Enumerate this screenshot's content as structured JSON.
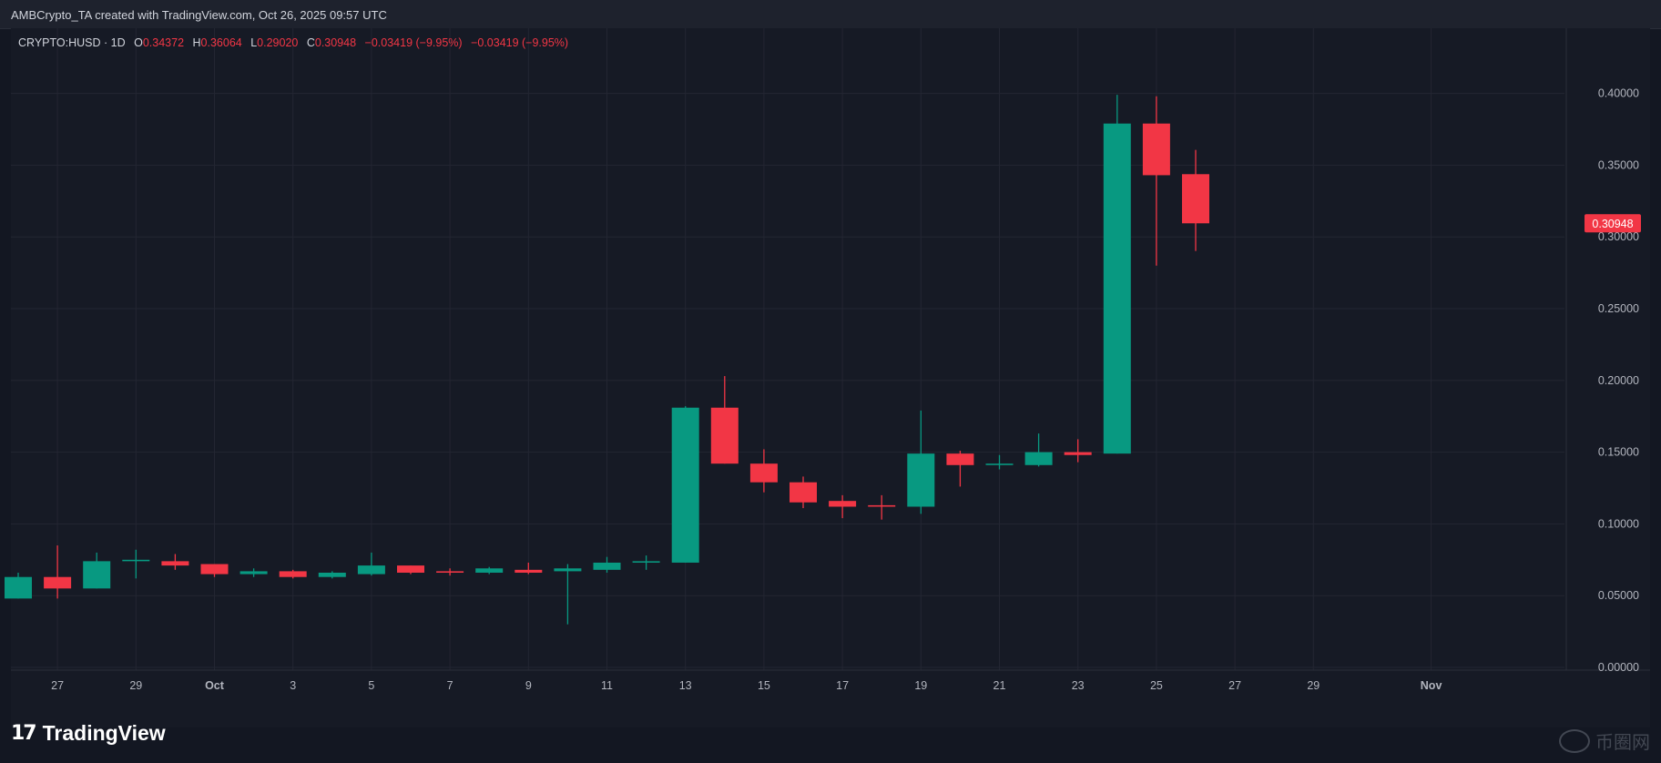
{
  "header": {
    "title": "AMBCrypto_TA created with TradingView.com, Oct 26, 2025 09:57 UTC"
  },
  "legend": {
    "symbol": "CRYPTO:HUSD · 1D",
    "open_label": "O",
    "open": "0.34372",
    "high_label": "H",
    "high": "0.36064",
    "low_label": "L",
    "low": "0.29020",
    "close_label": "C",
    "close": "0.30948",
    "change1": "−0.03419 (−9.95%)",
    "change2": "−0.03419 (−9.95%)"
  },
  "footer": {
    "logo_mark": "17",
    "logo_text": "TradingView",
    "watermark": "币圈网"
  },
  "colors": {
    "up": "#089981",
    "down": "#f23645",
    "background": "#131722",
    "grid": "#232632",
    "axis_text": "#b2b5be"
  },
  "chart_data": {
    "type": "candlestick",
    "interval": "1D",
    "y_range": [
      0.0,
      0.43
    ],
    "y_ticks": [
      "0.40000",
      "0.35000",
      "0.30000",
      "0.25000",
      "0.20000",
      "0.15000",
      "0.10000",
      "0.05000",
      "0.00000"
    ],
    "x_ticks": [
      {
        "label": "27",
        "day": 1
      },
      {
        "label": "29",
        "day": 3
      },
      {
        "label": "Oct",
        "day": 5
      },
      {
        "label": "3",
        "day": 7
      },
      {
        "label": "5",
        "day": 9
      },
      {
        "label": "7",
        "day": 11
      },
      {
        "label": "9",
        "day": 13
      },
      {
        "label": "11",
        "day": 15
      },
      {
        "label": "13",
        "day": 17
      },
      {
        "label": "15",
        "day": 19
      },
      {
        "label": "17",
        "day": 21
      },
      {
        "label": "19",
        "day": 23
      },
      {
        "label": "21",
        "day": 25
      },
      {
        "label": "23",
        "day": 27
      },
      {
        "label": "25",
        "day": 29
      },
      {
        "label": "27",
        "day": 31
      },
      {
        "label": "29",
        "day": 33
      },
      {
        "label": "Nov",
        "day": 36
      }
    ],
    "last_price_label": "0.30948",
    "candles": [
      {
        "date": "2025-09-26",
        "o": 0.048,
        "h": 0.066,
        "l": 0.048,
        "c": 0.063
      },
      {
        "date": "2025-09-27",
        "o": 0.063,
        "h": 0.085,
        "l": 0.048,
        "c": 0.055
      },
      {
        "date": "2025-09-28",
        "o": 0.055,
        "h": 0.08,
        "l": 0.055,
        "c": 0.074
      },
      {
        "date": "2025-09-29",
        "o": 0.074,
        "h": 0.082,
        "l": 0.062,
        "c": 0.075
      },
      {
        "date": "2025-09-30",
        "o": 0.074,
        "h": 0.079,
        "l": 0.068,
        "c": 0.071
      },
      {
        "date": "2025-10-01",
        "o": 0.072,
        "h": 0.072,
        "l": 0.063,
        "c": 0.065
      },
      {
        "date": "2025-10-02",
        "o": 0.065,
        "h": 0.069,
        "l": 0.063,
        "c": 0.067
      },
      {
        "date": "2025-10-03",
        "o": 0.067,
        "h": 0.068,
        "l": 0.062,
        "c": 0.063
      },
      {
        "date": "2025-10-04",
        "o": 0.063,
        "h": 0.067,
        "l": 0.062,
        "c": 0.066
      },
      {
        "date": "2025-10-05",
        "o": 0.065,
        "h": 0.08,
        "l": 0.064,
        "c": 0.071
      },
      {
        "date": "2025-10-06",
        "o": 0.071,
        "h": 0.071,
        "l": 0.065,
        "c": 0.066
      },
      {
        "date": "2025-10-07",
        "o": 0.067,
        "h": 0.069,
        "l": 0.064,
        "c": 0.066
      },
      {
        "date": "2025-10-08",
        "o": 0.066,
        "h": 0.07,
        "l": 0.065,
        "c": 0.069
      },
      {
        "date": "2025-10-09",
        "o": 0.068,
        "h": 0.073,
        "l": 0.065,
        "c": 0.066
      },
      {
        "date": "2025-10-10",
        "o": 0.067,
        "h": 0.072,
        "l": 0.03,
        "c": 0.069
      },
      {
        "date": "2025-10-11",
        "o": 0.068,
        "h": 0.077,
        "l": 0.066,
        "c": 0.073
      },
      {
        "date": "2025-10-12",
        "o": 0.073,
        "h": 0.078,
        "l": 0.068,
        "c": 0.074
      },
      {
        "date": "2025-10-13",
        "o": 0.073,
        "h": 0.182,
        "l": 0.073,
        "c": 0.181
      },
      {
        "date": "2025-10-14",
        "o": 0.181,
        "h": 0.203,
        "l": 0.142,
        "c": 0.142
      },
      {
        "date": "2025-10-15",
        "o": 0.142,
        "h": 0.152,
        "l": 0.122,
        "c": 0.129
      },
      {
        "date": "2025-10-16",
        "o": 0.129,
        "h": 0.133,
        "l": 0.111,
        "c": 0.115
      },
      {
        "date": "2025-10-17",
        "o": 0.116,
        "h": 0.12,
        "l": 0.104,
        "c": 0.112
      },
      {
        "date": "2025-10-18",
        "o": 0.113,
        "h": 0.12,
        "l": 0.103,
        "c": 0.112
      },
      {
        "date": "2025-10-19",
        "o": 0.112,
        "h": 0.179,
        "l": 0.107,
        "c": 0.149
      },
      {
        "date": "2025-10-20",
        "o": 0.149,
        "h": 0.151,
        "l": 0.126,
        "c": 0.141
      },
      {
        "date": "2025-10-21",
        "o": 0.141,
        "h": 0.148,
        "l": 0.138,
        "c": 0.142
      },
      {
        "date": "2025-10-22",
        "o": 0.141,
        "h": 0.163,
        "l": 0.14,
        "c": 0.15
      },
      {
        "date": "2025-10-23",
        "o": 0.15,
        "h": 0.159,
        "l": 0.143,
        "c": 0.148
      },
      {
        "date": "2025-10-24",
        "o": 0.149,
        "h": 0.399,
        "l": 0.149,
        "c": 0.379
      },
      {
        "date": "2025-10-25",
        "o": 0.379,
        "h": 0.398,
        "l": 0.28,
        "c": 0.343
      },
      {
        "date": "2025-10-26",
        "o": 0.34372,
        "h": 0.36064,
        "l": 0.2902,
        "c": 0.30948
      }
    ]
  }
}
